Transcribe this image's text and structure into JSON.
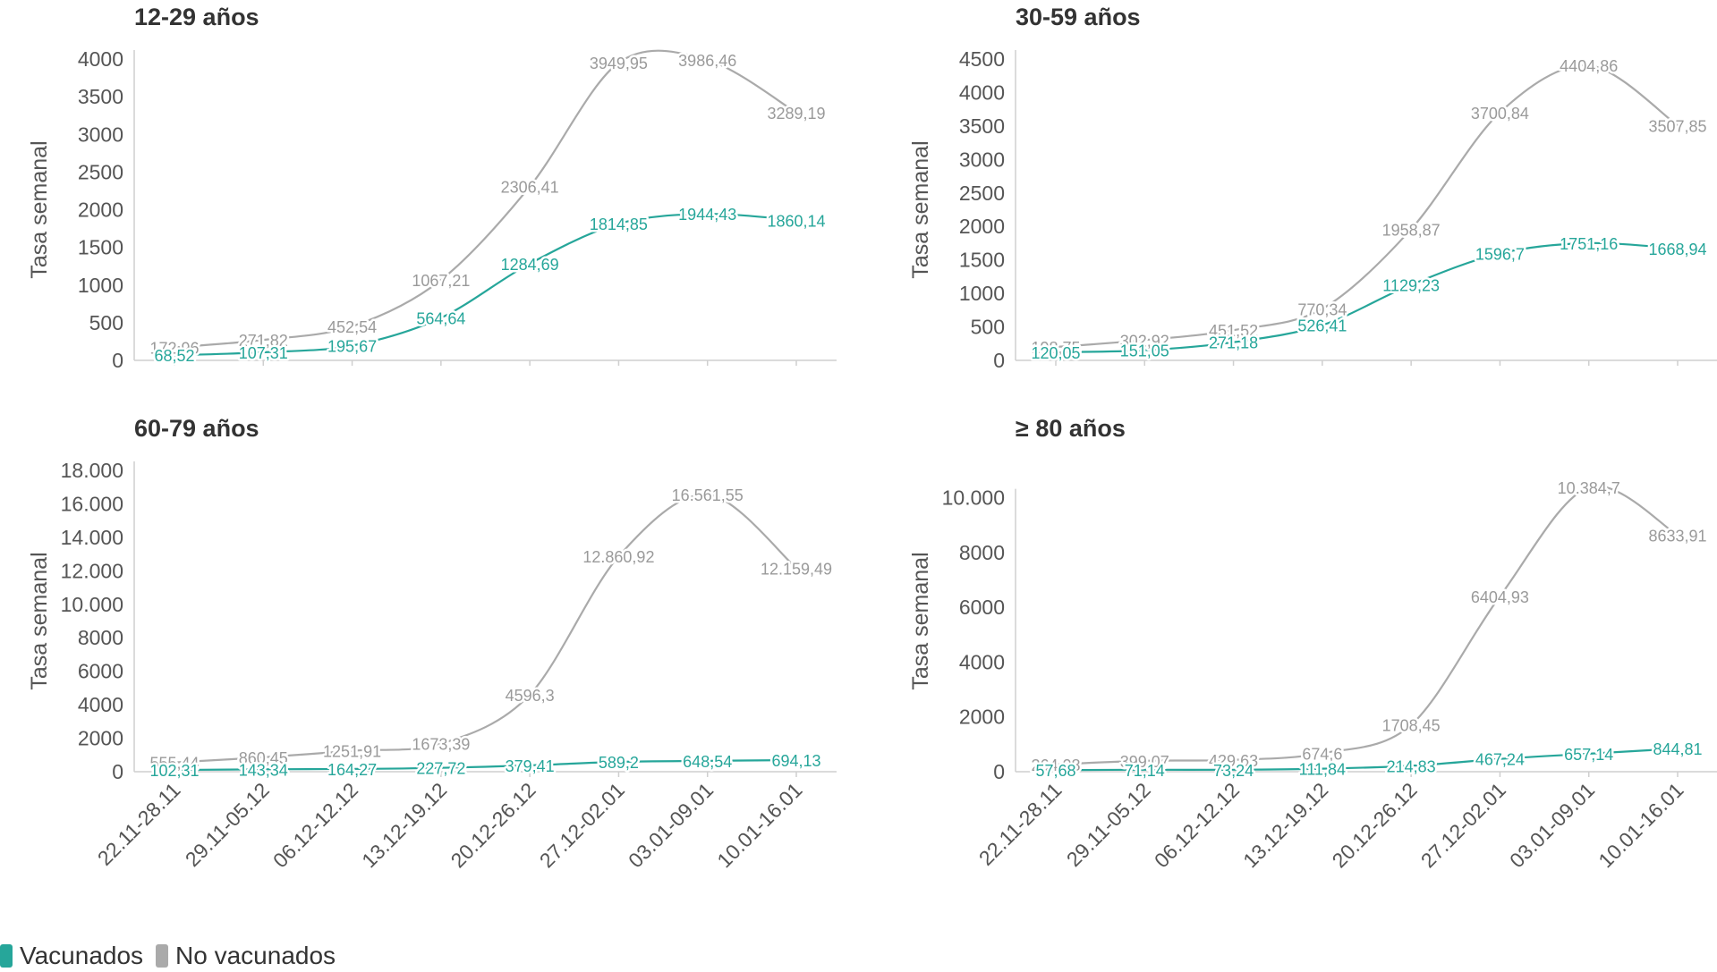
{
  "colors": {
    "vacunados": "#26a69a",
    "no_vacunados": "#aaaaaa",
    "axis": "#cfcfcf",
    "text": "#555555"
  },
  "legend": {
    "vacunados": "Vacunados",
    "no_vacunados": "No vacunados"
  },
  "chart_data": [
    {
      "type": "line",
      "title": "12-29 años",
      "ylabel": "Tasa semanal",
      "ylim": [
        0,
        4000
      ],
      "ytick_values": [
        0,
        500,
        1000,
        1500,
        2000,
        2500,
        3000,
        3500,
        4000
      ],
      "ytick_labels": [
        "0",
        "500",
        "1000",
        "1500",
        "2000",
        "2500",
        "3000",
        "3500",
        "4000"
      ],
      "categories": [
        "22.11-28.11",
        "29.11-05.12",
        "06.12-12.12",
        "13.12-19.12",
        "20.12-26.12",
        "27.12-02.01",
        "03.01-09.01",
        "10.01-16.01"
      ],
      "series": [
        {
          "name": "Vacunados",
          "values": [
            68.52,
            107.31,
            195.67,
            564.64,
            1284.69,
            1814.85,
            1944.43,
            1860.14
          ],
          "labels": [
            "68,52",
            "107,31",
            "195,67",
            "564,64",
            "1284,69",
            "1814,85",
            "1944,43",
            "1860,14"
          ]
        },
        {
          "name": "No vacunados",
          "values": [
            172.96,
            271.82,
            452.54,
            1067.21,
            2306.41,
            3949.95,
            3986.46,
            3289.19
          ],
          "labels": [
            "172,96",
            "271,82",
            "452,54",
            "1067,21",
            "2306,41",
            "3949,95",
            "3986,46",
            "3289,19"
          ]
        }
      ]
    },
    {
      "type": "line",
      "title": "30-59 años",
      "ylabel": "Tasa semanal",
      "ylim": [
        0,
        4500
      ],
      "ytick_values": [
        0,
        500,
        1000,
        1500,
        2000,
        2500,
        3000,
        3500,
        4000,
        4500
      ],
      "ytick_labels": [
        "0",
        "500",
        "1000",
        "1500",
        "2000",
        "2500",
        "3000",
        "3500",
        "4000",
        "4500"
      ],
      "categories": [
        "22.11-28.11",
        "29.11-05.12",
        "06.12-12.12",
        "13.12-19.12",
        "20.12-26.12",
        "27.12-02.01",
        "03.01-09.01",
        "10.01-16.01"
      ],
      "series": [
        {
          "name": "Vacunados",
          "values": [
            120.05,
            151.05,
            271.18,
            526.41,
            1129.23,
            1596.7,
            1751.16,
            1668.94
          ],
          "labels": [
            "120,05",
            "151,05",
            "271,18",
            "526,41",
            "1129,23",
            "1596,7",
            "1751,16",
            "1668,94"
          ]
        },
        {
          "name": "No vacunados",
          "values": [
            198.75,
            302.92,
            451.52,
            770.34,
            1958.87,
            3700.84,
            4404.86,
            3507.85
          ],
          "labels": [
            "198,75",
            "302,92",
            "451,52",
            "770,34",
            "1958,87",
            "3700,84",
            "4404,86",
            "3507,85"
          ]
        }
      ]
    },
    {
      "type": "line",
      "title": "60-79 años",
      "ylabel": "Tasa semanal",
      "ylim": [
        0,
        18000
      ],
      "ytick_values": [
        0,
        2000,
        4000,
        6000,
        8000,
        10000,
        12000,
        14000,
        16000,
        18000
      ],
      "ytick_labels": [
        "0",
        "2000",
        "4000",
        "6000",
        "8000",
        "10.000",
        "12.000",
        "14.000",
        "16.000",
        "18.000"
      ],
      "categories": [
        "22.11-28.11",
        "29.11-05.12",
        "06.12-12.12",
        "13.12-19.12",
        "20.12-26.12",
        "27.12-02.01",
        "03.01-09.01",
        "10.01-16.01"
      ],
      "series": [
        {
          "name": "Vacunados",
          "values": [
            102.31,
            143.34,
            164.27,
            227.72,
            379.41,
            589.2,
            648.54,
            694.13
          ],
          "labels": [
            "102,31",
            "143,34",
            "164,27",
            "227,72",
            "379,41",
            "589,2",
            "648,54",
            "694,13"
          ]
        },
        {
          "name": "No vacunados",
          "values": [
            555.44,
            860.45,
            1251.91,
            1673.39,
            4596.3,
            12860.92,
            16561.55,
            12159.49
          ],
          "labels": [
            "555,44",
            "860,45",
            "1251,91",
            "1673,39",
            "4596,3",
            "12.860,92",
            "16.561,55",
            "12.159,49"
          ]
        }
      ]
    },
    {
      "type": "line",
      "title": "≥ 80 años",
      "ylabel": "Tasa semanal",
      "ylim": [
        0,
        11000
      ],
      "ytick_values": [
        0,
        2000,
        4000,
        6000,
        8000,
        10000
      ],
      "ytick_labels": [
        "0",
        "2000",
        "4000",
        "6000",
        "8000",
        "10.000"
      ],
      "categories": [
        "22.11-28.11",
        "29.11-05.12",
        "06.12-12.12",
        "13.12-19.12",
        "20.12-26.12",
        "27.12-02.01",
        "03.01-09.01",
        "10.01-16.01"
      ],
      "series": [
        {
          "name": "Vacunados",
          "values": [
            57.68,
            71.14,
            73.24,
            111.84,
            214.83,
            467.24,
            657.14,
            844.81
          ],
          "labels": [
            "57,68",
            "71,14",
            "73,24",
            "111,84",
            "214,83",
            "467,24",
            "657,14",
            "844,81"
          ]
        },
        {
          "name": "No vacunados",
          "values": [
            264.08,
            399.07,
            429.63,
            674.6,
            1708.45,
            6404.93,
            10384.7,
            8633.91
          ],
          "labels": [
            "264,08",
            "399,07",
            "429,63",
            "674,6",
            "1708,45",
            "6404,93",
            "10.384,7",
            "8633,91"
          ]
        }
      ]
    }
  ]
}
